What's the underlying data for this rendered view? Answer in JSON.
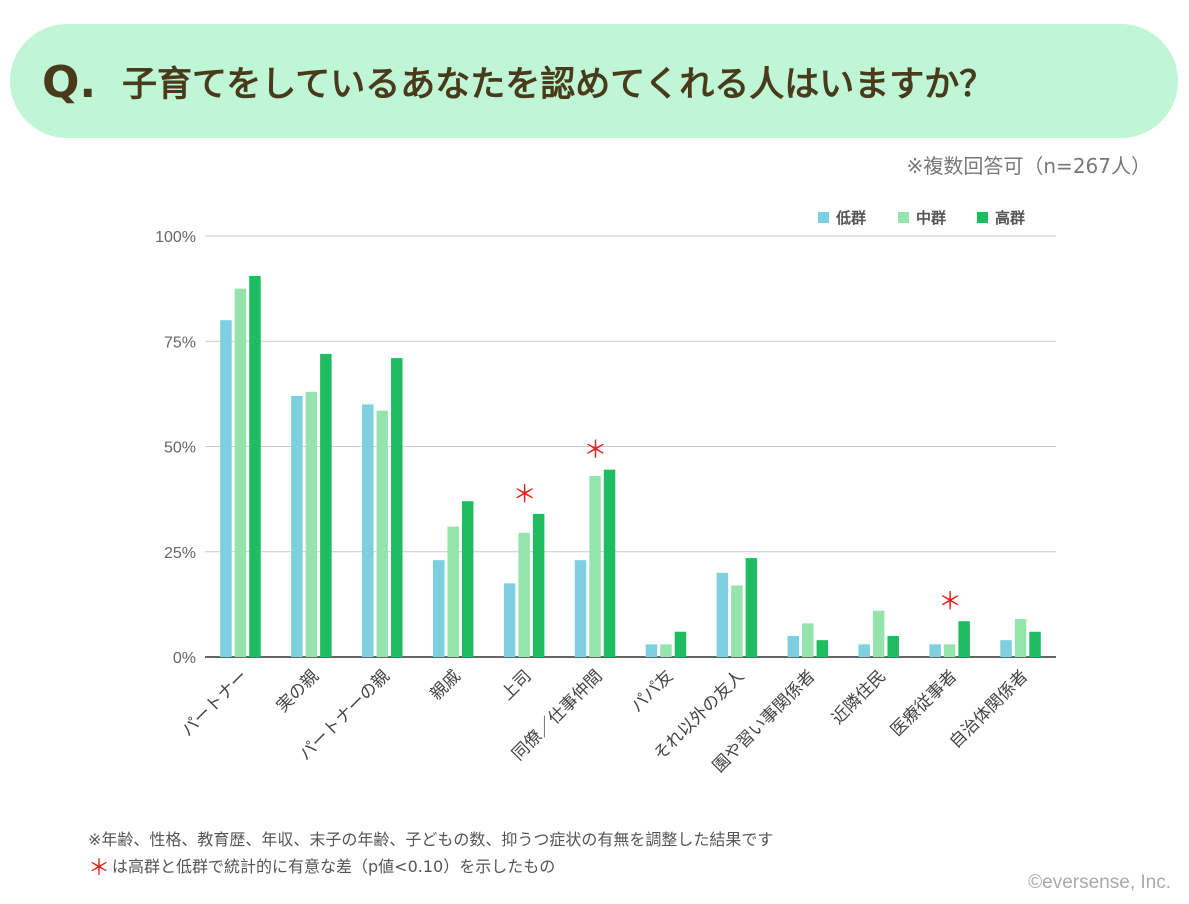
{
  "header": {
    "q_mark": "Q.",
    "question": "子育てをしているあなたを認めてくれる人はいますか？",
    "note": "※複数回答可（n=267人）"
  },
  "footnotes": {
    "line1": "※年齢、性格、教育歴、年収、末子の年齢、子どもの数、抑うつ症状の有無を調整した結果です",
    "line2_star": "＊",
    "line2": "は高群と低群で統計的に有意な差（p値<0.10）を示したもの"
  },
  "copyright": "©eversense, Inc.",
  "colors": {
    "low": "#7ecfdf",
    "mid": "#95e4ae",
    "high": "#1fbd62",
    "star": "#e8201c",
    "grid": "#cccccc",
    "axis": "#333333"
  },
  "chart_data": {
    "type": "bar",
    "categories": [
      "パートナー",
      "実の親",
      "パートナーの親",
      "親戚",
      "上司",
      "同僚／仕事仲間",
      "パパ友",
      "それ以外の友人",
      "園や習い事関係者",
      "近隣住民",
      "医療従事者",
      "自治体関係者"
    ],
    "series": [
      {
        "name": "低群",
        "values": [
          80,
          62,
          60,
          23,
          17.5,
          23,
          3,
          20,
          5,
          3,
          3,
          4
        ]
      },
      {
        "name": "中群",
        "values": [
          87.5,
          63,
          58.5,
          31,
          29.5,
          43,
          3,
          17,
          8,
          11,
          3,
          9
        ]
      },
      {
        "name": "高群",
        "values": [
          90.5,
          72,
          71,
          37,
          34,
          44.5,
          6,
          23.5,
          4,
          5,
          8.5,
          6
        ]
      }
    ],
    "significant": [
      false,
      false,
      false,
      false,
      true,
      true,
      false,
      false,
      false,
      false,
      true,
      false
    ],
    "significance_mark": "＊",
    "yticks": [
      "0%",
      "25%",
      "50%",
      "75%",
      "100%"
    ],
    "ylim": [
      0,
      100
    ],
    "grid": true,
    "legend_position": "top-right"
  }
}
